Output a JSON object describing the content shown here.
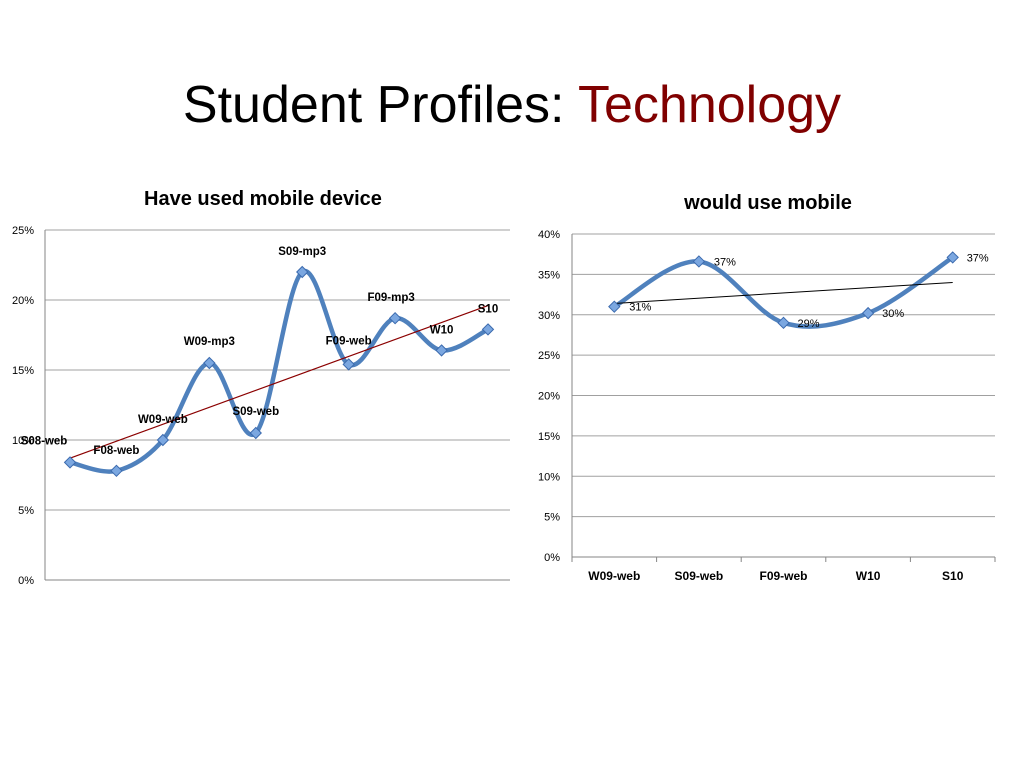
{
  "slide": {
    "title_main": "Student Profiles: ",
    "title_accent": "Technology",
    "accent_color": "#800000"
  },
  "chart_data": [
    {
      "type": "line",
      "title": "Have used mobile device",
      "ylim": [
        0,
        25
      ],
      "yticks": [
        "0%",
        "5%",
        "10%",
        "15%",
        "20%",
        "25%"
      ],
      "y_unit": "%",
      "grid": true,
      "legend": "none",
      "points": [
        {
          "label": "S08-web",
          "value": 8.4
        },
        {
          "label": "F08-web",
          "value": 7.8
        },
        {
          "label": "W09-web",
          "value": 10.0
        },
        {
          "label": "W09-mp3",
          "value": 15.5
        },
        {
          "label": "S09-web",
          "value": 10.5
        },
        {
          "label": "S09-mp3",
          "value": 22.0
        },
        {
          "label": "F09-web",
          "value": 15.4
        },
        {
          "label": "F09-mp3",
          "value": 18.7
        },
        {
          "label": "W10",
          "value": 16.4
        },
        {
          "label": "S10",
          "value": 17.9
        }
      ],
      "trendline": {
        "start": 8.7,
        "end": 19.6,
        "color": "#8B0000"
      },
      "series_color": "#4F81BD"
    },
    {
      "type": "line",
      "title": "would use mobile",
      "ylim": [
        0,
        40
      ],
      "yticks": [
        "0%",
        "5%",
        "10%",
        "15%",
        "20%",
        "25%",
        "30%",
        "35%",
        "40%"
      ],
      "grid": true,
      "legend": "none",
      "categories": [
        "W09-web",
        "S09-web",
        "F09-web",
        "W10",
        "S10"
      ],
      "values": [
        31,
        36.6,
        29,
        30.2,
        37.1
      ],
      "data_labels": [
        "31%",
        "37%",
        "29%",
        "30%",
        "37%"
      ],
      "trendline": {
        "start": 31.4,
        "end": 34.0,
        "color": "#000000"
      },
      "series_color": "#4F81BD"
    }
  ]
}
